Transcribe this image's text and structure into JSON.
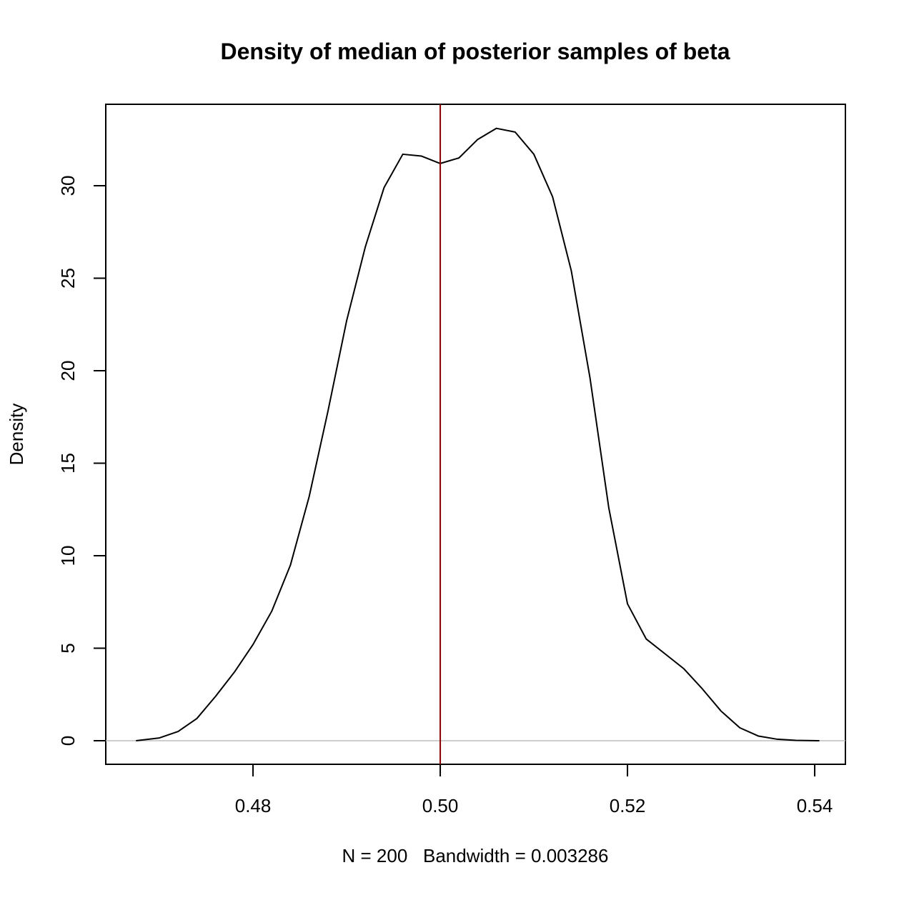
{
  "chart_data": {
    "type": "line",
    "title": "Density of median of posterior samples of beta",
    "x_label": "N = 200   Bandwidth = 0.003286",
    "y_label": "Density",
    "x": [
      0.4675,
      0.47,
      0.472,
      0.474,
      0.476,
      0.478,
      0.48,
      0.482,
      0.484,
      0.486,
      0.488,
      0.49,
      0.492,
      0.494,
      0.496,
      0.498,
      0.5,
      0.502,
      0.504,
      0.506,
      0.508,
      0.51,
      0.512,
      0.514,
      0.516,
      0.518,
      0.52,
      0.522,
      0.524,
      0.526,
      0.528,
      0.53,
      0.532,
      0.534,
      0.536,
      0.538,
      0.5405
    ],
    "values": [
      0,
      0.15,
      0.5,
      1.2,
      2.4,
      3.7,
      5.2,
      7.0,
      9.5,
      13.2,
      17.8,
      22.7,
      26.7,
      29.9,
      31.7,
      31.6,
      31.2,
      31.5,
      32.5,
      33.1,
      32.9,
      31.7,
      29.4,
      25.4,
      19.6,
      12.6,
      7.4,
      5.5,
      4.7,
      3.9,
      2.8,
      1.6,
      0.7,
      0.25,
      0.08,
      0.02,
      0
    ],
    "color": "#000000",
    "vline": 0.5,
    "vline_color": "#8b0000",
    "hline": 0,
    "hline_color": "#bebebe",
    "xlim": [
      0.46427,
      0.54328
    ],
    "ylim": [
      -1.274,
      34.4
    ],
    "xticks": [
      0.48,
      {
        "value": 0.5,
        "label": "0.50"
      },
      0.52,
      0.54
    ],
    "yticks": [
      0,
      5,
      10,
      15,
      20,
      25,
      30
    ]
  }
}
